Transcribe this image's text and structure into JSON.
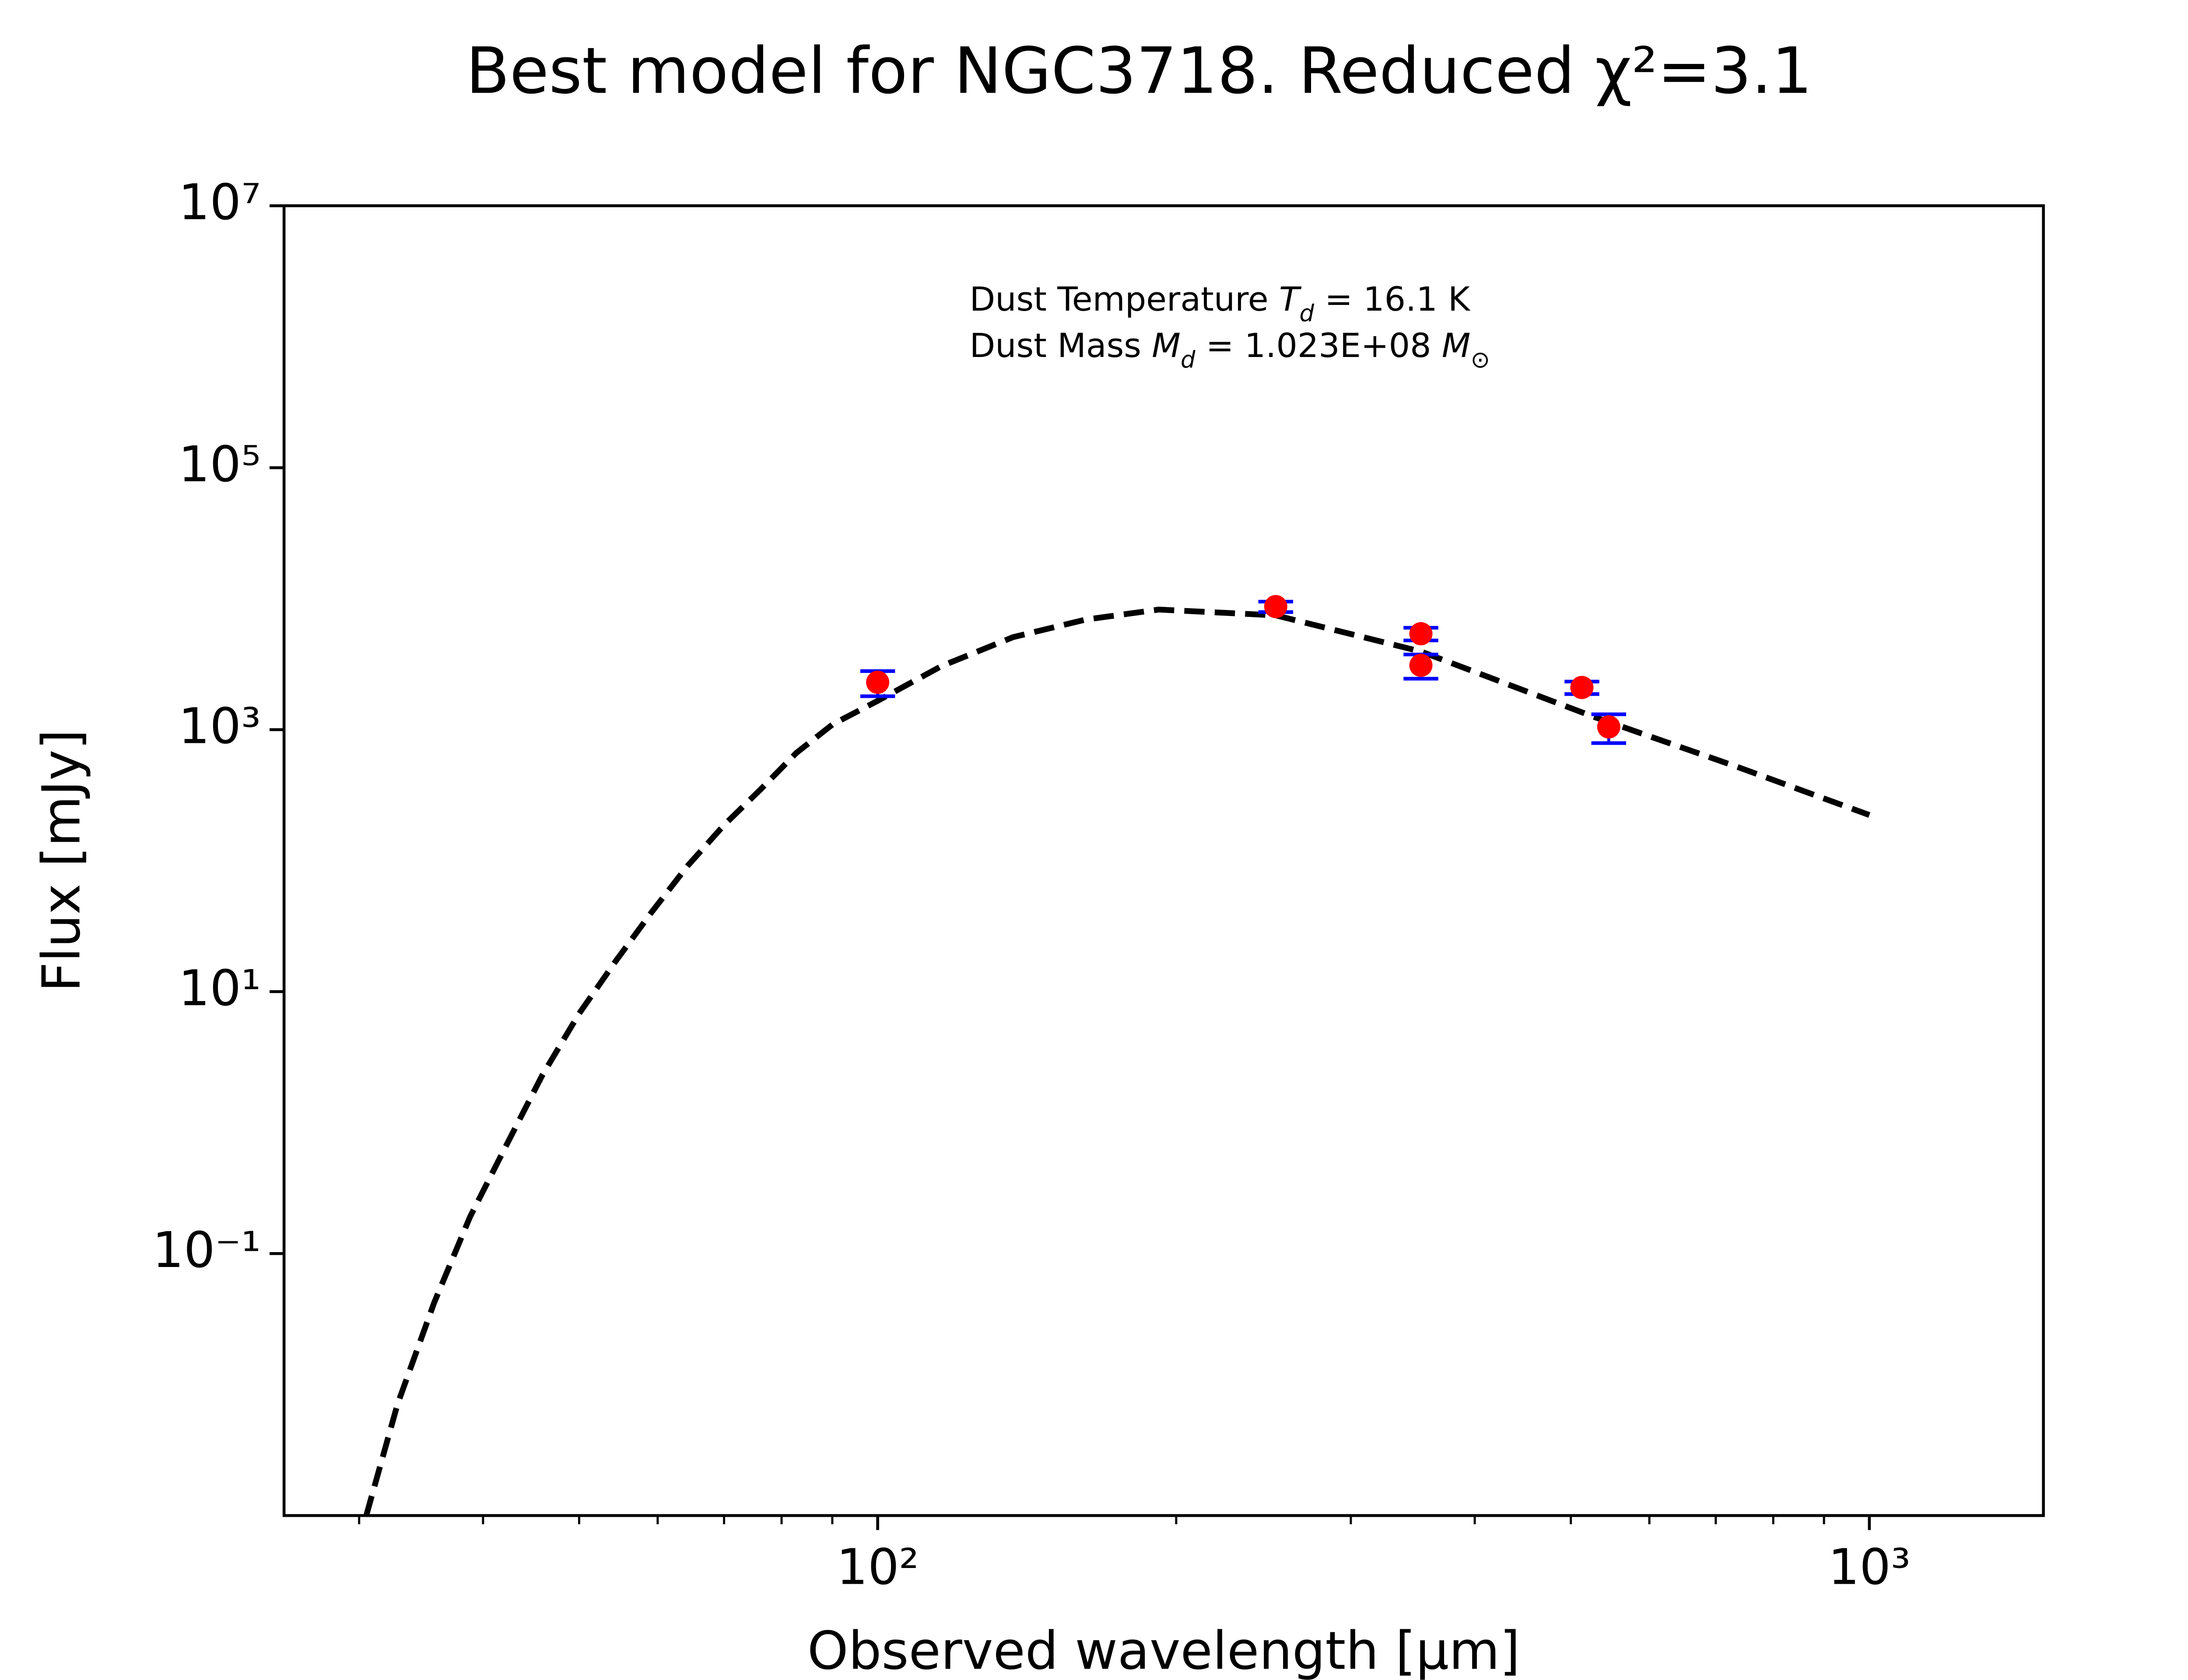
{
  "chart_data": {
    "type": "scatter",
    "title": "Best model for NGC3718. Reduced χ²=3.1",
    "xlabel": "Observed wavelength [μm]",
    "ylabel": "Flux [mJy]",
    "xscale": "log",
    "yscale": "log",
    "xlim": [
      25.2,
      1498
    ],
    "ylim": [
      0.001,
      10000000
    ],
    "xticks": [
      {
        "value": 100,
        "label": "10²"
      },
      {
        "value": 1000,
        "label": "10³"
      }
    ],
    "xminorticks": [
      30,
      40,
      50,
      60,
      70,
      80,
      90,
      200,
      300,
      400,
      500,
      600,
      700,
      800,
      900
    ],
    "yticks": [
      {
        "value": 10000000,
        "label": "10⁷"
      },
      {
        "value": 100000,
        "label": "10⁵"
      },
      {
        "value": 1000,
        "label": "10³"
      },
      {
        "value": 10,
        "label": "10¹"
      },
      {
        "value": 0.1,
        "label": "10⁻¹"
      }
    ],
    "annotations": [
      {
        "text": "Dust Temperature ",
        "symbol": "T",
        "subscript": "d",
        "value": " = 16.1 K"
      },
      {
        "text": "Dust Mass ",
        "symbol": "M",
        "subscript": "d",
        "value": " = 1.023E+08 ",
        "unit": "M",
        "unit_subscript": "⊙"
      }
    ],
    "series": [
      {
        "type": "line",
        "color": "#000000",
        "dashed": true,
        "x": [
          30.5,
          32.8,
          35.7,
          38.8,
          42.3,
          45.9,
          50.0,
          54.4,
          59.1,
          64.3,
          70.0,
          76.2,
          82.8,
          90.1,
          100,
          116,
          137,
          162,
          192,
          252,
          353,
          527,
          738,
          1000
        ],
        "y": [
          0.001,
          0.0071,
          0.042,
          0.19,
          0.69,
          2.3,
          6.8,
          17,
          40,
          91,
          187,
          350,
          665,
          1100,
          1660,
          3060,
          5090,
          6920,
          8260,
          7460,
          3950,
          1256,
          516,
          223
        ]
      },
      {
        "type": "errorbar",
        "color": "#ff0000",
        "error_color": "#0000ff",
        "x": [
          100,
          252,
          353,
          353,
          513,
          546
        ],
        "y": [
          2300,
          8700,
          5400,
          3100,
          2100,
          1050
        ],
        "yerr": [
          500,
          800,
          600,
          650,
          230,
          260
        ]
      }
    ]
  }
}
